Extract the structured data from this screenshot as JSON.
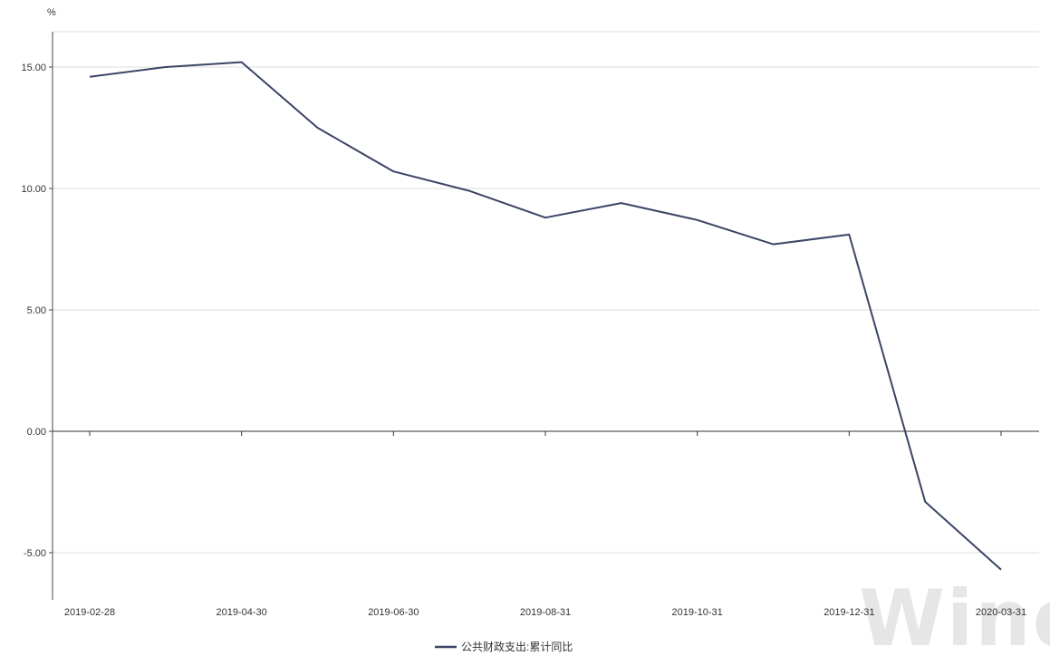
{
  "chart_data": {
    "type": "line",
    "y_unit": "%",
    "x": [
      "2019-02-28",
      "2019-03-31",
      "2019-04-30",
      "2019-05-31",
      "2019-06-30",
      "2019-07-31",
      "2019-08-31",
      "2019-09-30",
      "2019-10-31",
      "2019-11-30",
      "2019-12-31",
      "2020-02-29",
      "2020-03-31"
    ],
    "x_tick_labels": [
      "2019-02-28",
      "2019-04-30",
      "2019-06-30",
      "2019-08-31",
      "2019-10-31",
      "2019-12-31",
      "2020-03-31"
    ],
    "y_ticks": [
      "15.00",
      "10.00",
      "5.00",
      "0.00",
      "-5.00"
    ],
    "ylim": [
      -7,
      16.5
    ],
    "series": [
      {
        "name": "公共财政支出:累计同比",
        "color": "#3b4566",
        "values": [
          14.6,
          15.0,
          15.2,
          12.5,
          10.7,
          9.9,
          8.8,
          9.4,
          8.7,
          7.7,
          8.1,
          -2.9,
          -5.7
        ]
      }
    ],
    "grid": true,
    "legend_position": "bottom-center",
    "watermark": "Wind"
  }
}
